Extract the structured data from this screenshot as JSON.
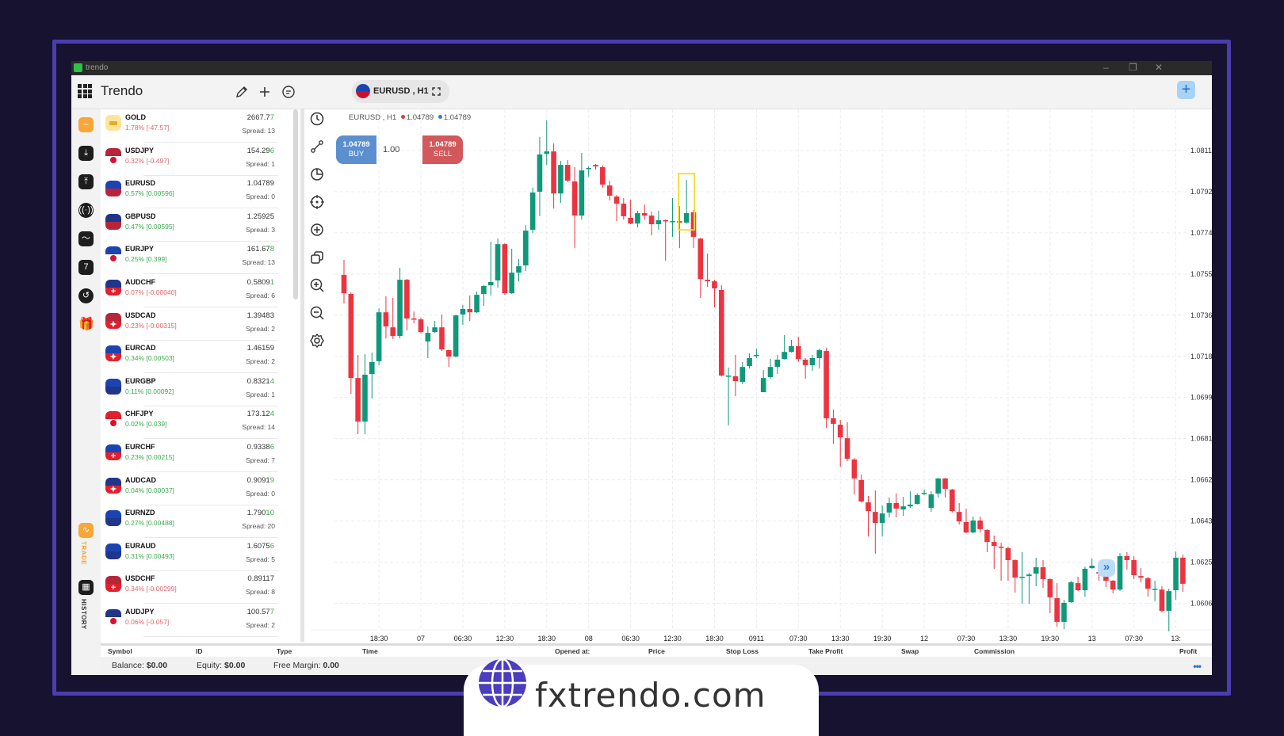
{
  "window": {
    "title": "trendo",
    "controls": [
      "–",
      "❐",
      "✕"
    ]
  },
  "header": {
    "brand": "Trendo",
    "symbol_pill": "EURUSD , H1",
    "icons": [
      "apps-grid-icon",
      "pencil-icon",
      "plus-icon",
      "chat-icon",
      "expand-icon"
    ],
    "add_button": "+"
  },
  "rail": {
    "items": [
      "home",
      "deposit",
      "withdraw",
      "signals",
      "analytics",
      "calendar-7",
      "history-clock",
      "gift"
    ],
    "trade_label": "TRADE",
    "history_label": "HISTORY",
    "accent": "#f7a637"
  },
  "watchlist": [
    {
      "symbol": "GOLD",
      "change": "1.78% [-47.57]",
      "dir": "dn",
      "price_head": "2667.7",
      "price_tail": "7",
      "tick": "up",
      "spread": "Spread: 13",
      "base": "GOLD",
      "quote": ""
    },
    {
      "symbol": "USDJPY",
      "change": "0.32% [-0.497]",
      "dir": "dn",
      "price_head": "154.29",
      "price_tail": "6",
      "tick": "up",
      "spread": "Spread: 1",
      "base": "USD",
      "quote": "JPY"
    },
    {
      "symbol": "EURUSD",
      "change": "0.57% [0.00596]",
      "dir": "up",
      "price_head": "1.0478",
      "price_tail": "9",
      "tick": "none",
      "spread": "Spread: 0",
      "base": "EUR",
      "quote": "USD"
    },
    {
      "symbol": "GBPUSD",
      "change": "0.47% [0.00595]",
      "dir": "up",
      "price_head": "1.2592",
      "price_tail": "5",
      "tick": "none",
      "spread": "Spread: 3",
      "base": "GBP",
      "quote": "USD"
    },
    {
      "symbol": "EURJPY",
      "change": "0.25% [0.399]",
      "dir": "up",
      "price_head": "161.67",
      "price_tail": "8",
      "tick": "up",
      "spread": "Spread: 13",
      "base": "EUR",
      "quote": "JPY"
    },
    {
      "symbol": "AUDCHF",
      "change": "0.07% [-0.00040]",
      "dir": "dn",
      "price_head": "0.5809",
      "price_tail": "1",
      "tick": "up",
      "spread": "Spread: 6",
      "base": "AUD",
      "quote": "CHF"
    },
    {
      "symbol": "USDCAD",
      "change": "0.23% [-0.00315]",
      "dir": "dn",
      "price_head": "1.3948",
      "price_tail": "3",
      "tick": "none",
      "spread": "Spread: 2",
      "base": "USD",
      "quote": "CAD"
    },
    {
      "symbol": "EURCAD",
      "change": "0.34% [0.00503]",
      "dir": "up",
      "price_head": "1.4615",
      "price_tail": "9",
      "tick": "none",
      "spread": "Spread: 2",
      "base": "EUR",
      "quote": "CAD"
    },
    {
      "symbol": "EURGBP",
      "change": "0.11% [0.00092]",
      "dir": "up",
      "price_head": "0.8321",
      "price_tail": "4",
      "tick": "up",
      "spread": "Spread: 1",
      "base": "EUR",
      "quote": "GBP"
    },
    {
      "symbol": "CHFJPY",
      "change": "0.02% [0.039]",
      "dir": "up",
      "price_head": "173.12",
      "price_tail": "4",
      "tick": "up",
      "spread": "Spread: 14",
      "base": "CHF",
      "quote": "JPY"
    },
    {
      "symbol": "EURCHF",
      "change": "0.23% [0.00215]",
      "dir": "up",
      "price_head": "0.9338",
      "price_tail": "6",
      "tick": "up",
      "spread": "Spread: 7",
      "base": "EUR",
      "quote": "CHF"
    },
    {
      "symbol": "AUDCAD",
      "change": "0.04% [0.00037]",
      "dir": "up",
      "price_head": "0.9091",
      "price_tail": "9",
      "tick": "up",
      "spread": "Spread: 0",
      "base": "AUD",
      "quote": "CAD"
    },
    {
      "symbol": "EURNZD",
      "change": "0.27% [0.00488]",
      "dir": "up",
      "price_head": "1.790",
      "price_tail": "10",
      "tick": "up",
      "spread": "Spread: 20",
      "base": "EUR",
      "quote": "NZD"
    },
    {
      "symbol": "EURAUD",
      "change": "0.31% [0.00493]",
      "dir": "up",
      "price_head": "1.6075",
      "price_tail": "6",
      "tick": "up",
      "spread": "Spread: 5",
      "base": "EUR",
      "quote": "AUD"
    },
    {
      "symbol": "USDCHF",
      "change": "0.34% [-0.00299]",
      "dir": "dn",
      "price_head": "0.8911",
      "price_tail": "7",
      "tick": "none",
      "spread": "Spread: 8",
      "base": "USD",
      "quote": "CHF"
    },
    {
      "symbol": "AUDJPY",
      "change": "0.06% [-0.057]",
      "dir": "dn",
      "price_head": "100.57",
      "price_tail": "7",
      "tick": "up",
      "spread": "Spread: 2",
      "base": "AUD",
      "quote": "JPY"
    }
  ],
  "chart_tools": [
    "clock-icon",
    "line-tool-icon",
    "timer-icon",
    "crosshair-icon",
    "plus-circle-icon",
    "layers-icon",
    "zoom-in-icon",
    "zoom-out-icon",
    "settings-icon"
  ],
  "chart_header": {
    "symbol": "EURUSD , H1",
    "bid": "1.04789",
    "ask": "1.04789",
    "bid_color": "#e23a45",
    "ask_color": "#2d7be0"
  },
  "trade": {
    "buy_price": "1.04789",
    "buy_label": "BUY",
    "lot": "1.00",
    "sell_price": "1.04789",
    "sell_label": "SELL"
  },
  "chart_data": {
    "type": "candlestick",
    "symbol": "EURUSD",
    "timeframe": "H1",
    "ylim": [
      1.05947,
      1.08292
    ],
    "grid": true,
    "up_color": "#10987a",
    "down_color": "#ec3440",
    "highlight_candle_index": 49,
    "y_ticks": [
      "1.08113",
      "1.07927",
      "1.07741",
      "1.07555",
      "1.07369",
      "1.07183",
      "1.06997",
      "1.06811",
      "1.06625",
      "1.06439",
      "1.06253",
      "1.06067"
    ],
    "x_labels": [
      "18:30",
      "07",
      "06:30",
      "12:30",
      "18:30",
      "08",
      "06:30",
      "12:30",
      "18:30",
      "0911",
      "07:30",
      "13:30",
      "19:30",
      "12",
      "07:30",
      "13:30",
      "19:30",
      "13",
      "07:30",
      "13:"
    ],
    "ohlc": [
      [
        1.07551,
        1.07619,
        1.07422,
        1.07468
      ],
      [
        1.07465,
        1.07472,
        1.07014,
        1.07085
      ],
      [
        1.07085,
        1.07189,
        1.06831,
        1.06888
      ],
      [
        1.06888,
        1.07193,
        1.06831,
        1.071
      ],
      [
        1.07103,
        1.072,
        1.06992,
        1.07157
      ],
      [
        1.07161,
        1.074,
        1.07143,
        1.07382
      ],
      [
        1.07382,
        1.07454,
        1.07264,
        1.07318
      ],
      [
        1.07314,
        1.07447,
        1.07261,
        1.07275
      ],
      [
        1.07275,
        1.07583,
        1.07264,
        1.07529
      ],
      [
        1.07529,
        1.07533,
        1.073,
        1.07354
      ],
      [
        1.07354,
        1.07386,
        1.07332,
        1.0735
      ],
      [
        1.0735,
        1.07357,
        1.07286,
        1.07293
      ],
      [
        1.0725,
        1.07318,
        1.07175,
        1.07289
      ],
      [
        1.07293,
        1.07343,
        1.07289,
        1.07314
      ],
      [
        1.07314,
        1.07372,
        1.07207,
        1.07214
      ],
      [
        1.07211,
        1.07214,
        1.07135,
        1.07182
      ],
      [
        1.07182,
        1.07372,
        1.07178,
        1.07368
      ],
      [
        1.07372,
        1.07415,
        1.07325,
        1.07397
      ],
      [
        1.07397,
        1.07458,
        1.07343,
        1.07382
      ],
      [
        1.07382,
        1.07476,
        1.07379,
        1.07461
      ],
      [
        1.07465,
        1.07504,
        1.07411,
        1.07501
      ],
      [
        1.07504,
        1.07701,
        1.07458,
        1.07519
      ],
      [
        1.07526,
        1.07715,
        1.07493,
        1.0769
      ],
      [
        1.0769,
        1.07694,
        1.07461,
        1.07468
      ],
      [
        1.07468,
        1.07669,
        1.07465,
        1.07561
      ],
      [
        1.07561,
        1.07622,
        1.07522,
        1.0759
      ],
      [
        1.07594,
        1.07776,
        1.07569,
        1.07751
      ],
      [
        1.07755,
        1.07945,
        1.0774,
        1.07923
      ],
      [
        1.07927,
        1.08174,
        1.07816,
        1.08095
      ],
      [
        1.08098,
        1.08249,
        1.08048,
        1.08109
      ],
      [
        1.08109,
        1.08145,
        1.07851,
        1.07919
      ],
      [
        1.07919,
        1.08066,
        1.07877,
        1.08048
      ],
      [
        1.08048,
        1.0807,
        1.0797,
        1.07977
      ],
      [
        1.07973,
        1.08038,
        1.07672,
        1.07819
      ],
      [
        1.07819,
        1.08102,
        1.07801,
        1.08023
      ],
      [
        1.0803,
        1.08041,
        1.07995,
        1.08034
      ],
      [
        1.08048,
        1.08052,
        1.08027,
        1.08041
      ],
      [
        1.08038,
        1.08045,
        1.07945,
        1.07959
      ],
      [
        1.07955,
        1.07977,
        1.07887,
        1.07909
      ],
      [
        1.07905,
        1.07912,
        1.07794,
        1.07873
      ],
      [
        1.07873,
        1.07898,
        1.07801,
        1.07816
      ],
      [
        1.07809,
        1.07891,
        1.0778,
        1.07783
      ],
      [
        1.07783,
        1.07841,
        1.07766,
        1.0783
      ],
      [
        1.0783,
        1.07869,
        1.07801,
        1.07819
      ],
      [
        1.07819,
        1.07837,
        1.0773,
        1.0778
      ],
      [
        1.0778,
        1.07841,
        1.07755,
        1.07798
      ],
      [
        1.07798,
        1.07801,
        1.07615,
        1.07794
      ],
      [
        1.07791,
        1.07898,
        1.07723,
        1.07794
      ],
      [
        1.07794,
        1.07862,
        1.07672,
        1.07787
      ],
      [
        1.07787,
        1.0798,
        1.07783,
        1.0783
      ],
      [
        1.07834,
        1.07844,
        1.07672,
        1.07723
      ],
      [
        1.07715,
        1.07719,
        1.07447,
        1.07533
      ],
      [
        1.07529,
        1.07647,
        1.07497,
        1.07522
      ],
      [
        1.07522,
        1.07529,
        1.07404,
        1.0749
      ],
      [
        1.07483,
        1.07504,
        1.07093,
        1.07096
      ],
      [
        1.07096,
        1.07132,
        1.06871,
        1.07096
      ],
      [
        1.07093,
        1.07189,
        1.07003,
        1.07071
      ],
      [
        1.07067,
        1.07157,
        1.07057,
        1.07135
      ],
      [
        1.07139,
        1.07196,
        1.07128,
        1.07175
      ],
      [
        1.07186,
        1.07218,
        1.07175,
        1.07189
      ],
      [
        1.07021,
        1.07121,
        1.07021,
        1.07085
      ],
      [
        1.07089,
        1.07171,
        1.07082,
        1.07135
      ],
      [
        1.07135,
        1.07189,
        1.07103,
        1.07168
      ],
      [
        1.07171,
        1.07279,
        1.07168,
        1.07203
      ],
      [
        1.07203,
        1.07257,
        1.072,
        1.07229
      ],
      [
        1.07229,
        1.07272,
        1.07157,
        1.07171
      ],
      [
        1.07168,
        1.07175,
        1.07082,
        1.07143
      ],
      [
        1.07143,
        1.07189,
        1.07118,
        1.07175
      ],
      [
        1.07175,
        1.07218,
        1.07128,
        1.07211
      ],
      [
        1.07207,
        1.07221,
        1.0686,
        1.06903
      ],
      [
        1.06903,
        1.06942,
        1.06788,
        1.06878
      ],
      [
        1.06874,
        1.06896,
        1.06684,
        1.06817
      ],
      [
        1.06813,
        1.06885,
        1.06709,
        1.0672
      ],
      [
        1.06717,
        1.06724,
        1.06559,
        1.06631
      ],
      [
        1.06624,
        1.06649,
        1.06523,
        1.06527
      ],
      [
        1.06523,
        1.06552,
        1.06369,
        1.06484
      ],
      [
        1.0648,
        1.06577,
        1.06291,
        1.0643
      ],
      [
        1.0643,
        1.06509,
        1.06369,
        1.06473
      ],
      [
        1.06477,
        1.06545,
        1.06455,
        1.0652
      ],
      [
        1.0652,
        1.06563,
        1.06455,
        1.06495
      ],
      [
        1.06491,
        1.06548,
        1.06462,
        1.06505
      ],
      [
        1.06505,
        1.06573,
        1.06498,
        1.06513
      ],
      [
        1.06516,
        1.06563,
        1.06513,
        1.06556
      ],
      [
        1.06566,
        1.06581,
        1.06556,
        1.06566
      ],
      [
        1.06498,
        1.06573,
        1.0648,
        1.06559
      ],
      [
        1.06563,
        1.06634,
        1.06545,
        1.06631
      ],
      [
        1.06631,
        1.06634,
        1.06545,
        1.06584
      ],
      [
        1.06581,
        1.06584,
        1.06477,
        1.06484
      ],
      [
        1.0648,
        1.0652,
        1.06423,
        1.06437
      ],
      [
        1.06434,
        1.06495,
        1.06384,
        1.06387
      ],
      [
        1.06387,
        1.06459,
        1.06384,
        1.06441
      ],
      [
        1.06441,
        1.06459,
        1.06387,
        1.06402
      ],
      [
        1.06398,
        1.06402,
        1.06298,
        1.06344
      ],
      [
        1.06344,
        1.06373,
        1.06223,
        1.06326
      ],
      [
        1.06323,
        1.06341,
        1.06169,
        1.06319
      ],
      [
        1.06316,
        1.06323,
        1.06169,
        1.06262
      ],
      [
        1.06262,
        1.06266,
        1.06115,
        1.06183
      ],
      [
        1.06183,
        1.06298,
        1.06065,
        1.06187
      ],
      [
        1.0619,
        1.06205,
        1.06065,
        1.06197
      ],
      [
        1.06201,
        1.06273,
        1.06144,
        1.0623
      ],
      [
        1.0623,
        1.06262,
        1.06137,
        1.06176
      ],
      [
        1.06176,
        1.0618,
        1.06022,
        1.06094
      ],
      [
        1.0609,
        1.06158,
        1.05961,
        1.05983
      ],
      [
        1.05983,
        1.06083,
        1.0595,
        1.06069
      ],
      [
        1.06072,
        1.06169,
        1.06069,
        1.06162
      ],
      [
        1.06158,
        1.06187,
        1.06122,
        1.06126
      ],
      [
        1.06126,
        1.06233,
        1.06097,
        1.06223
      ],
      [
        1.06226,
        1.06269,
        1.06223,
        1.06237
      ],
      [
        1.06208,
        1.06226,
        1.06169,
        1.06201
      ],
      [
        1.06194,
        1.06208,
        1.0614,
        1.06169
      ],
      [
        1.06169,
        1.06172,
        1.06112,
        1.06129
      ],
      [
        1.06129,
        1.06294,
        1.06122,
        1.0628
      ],
      [
        1.0628,
        1.06298,
        1.06219,
        1.06262
      ],
      [
        1.06262,
        1.0628,
        1.06176,
        1.06194
      ],
      [
        1.0619,
        1.06226,
        1.06162,
        1.06183
      ],
      [
        1.0618,
        1.06187,
        1.06097,
        1.06133
      ],
      [
        1.06129,
        1.06169,
        1.06076,
        1.06133
      ],
      [
        1.06129,
        1.06144,
        1.06026,
        1.06033
      ],
      [
        1.06033,
        1.06133,
        1.0594,
        1.06122
      ],
      [
        1.06126,
        1.06301,
        1.06083,
        1.06273
      ],
      [
        1.06273,
        1.06287,
        1.06119,
        1.06155
      ]
    ]
  },
  "positions_table": {
    "columns": [
      "Symbol",
      "ID",
      "Type",
      "Time",
      "Opened at:",
      "Price",
      "Stop Loss",
      "Take Profit",
      "Swap",
      "Commission",
      "Profit"
    ]
  },
  "account": {
    "balance_label": "Balance:",
    "balance": "$0.00",
    "equity_label": "Equity:",
    "equity": "$0.00",
    "free_margin_label": "Free Margin:",
    "free_margin": "0.00",
    "more": "•••"
  },
  "promo": {
    "site": "fxtrendo.com",
    "globe_color": "#4a3dbf"
  },
  "colors": {
    "background": "#17122f",
    "frame": "#4b3db0",
    "buy": "#5b8fd0",
    "sell": "#d2585b"
  }
}
